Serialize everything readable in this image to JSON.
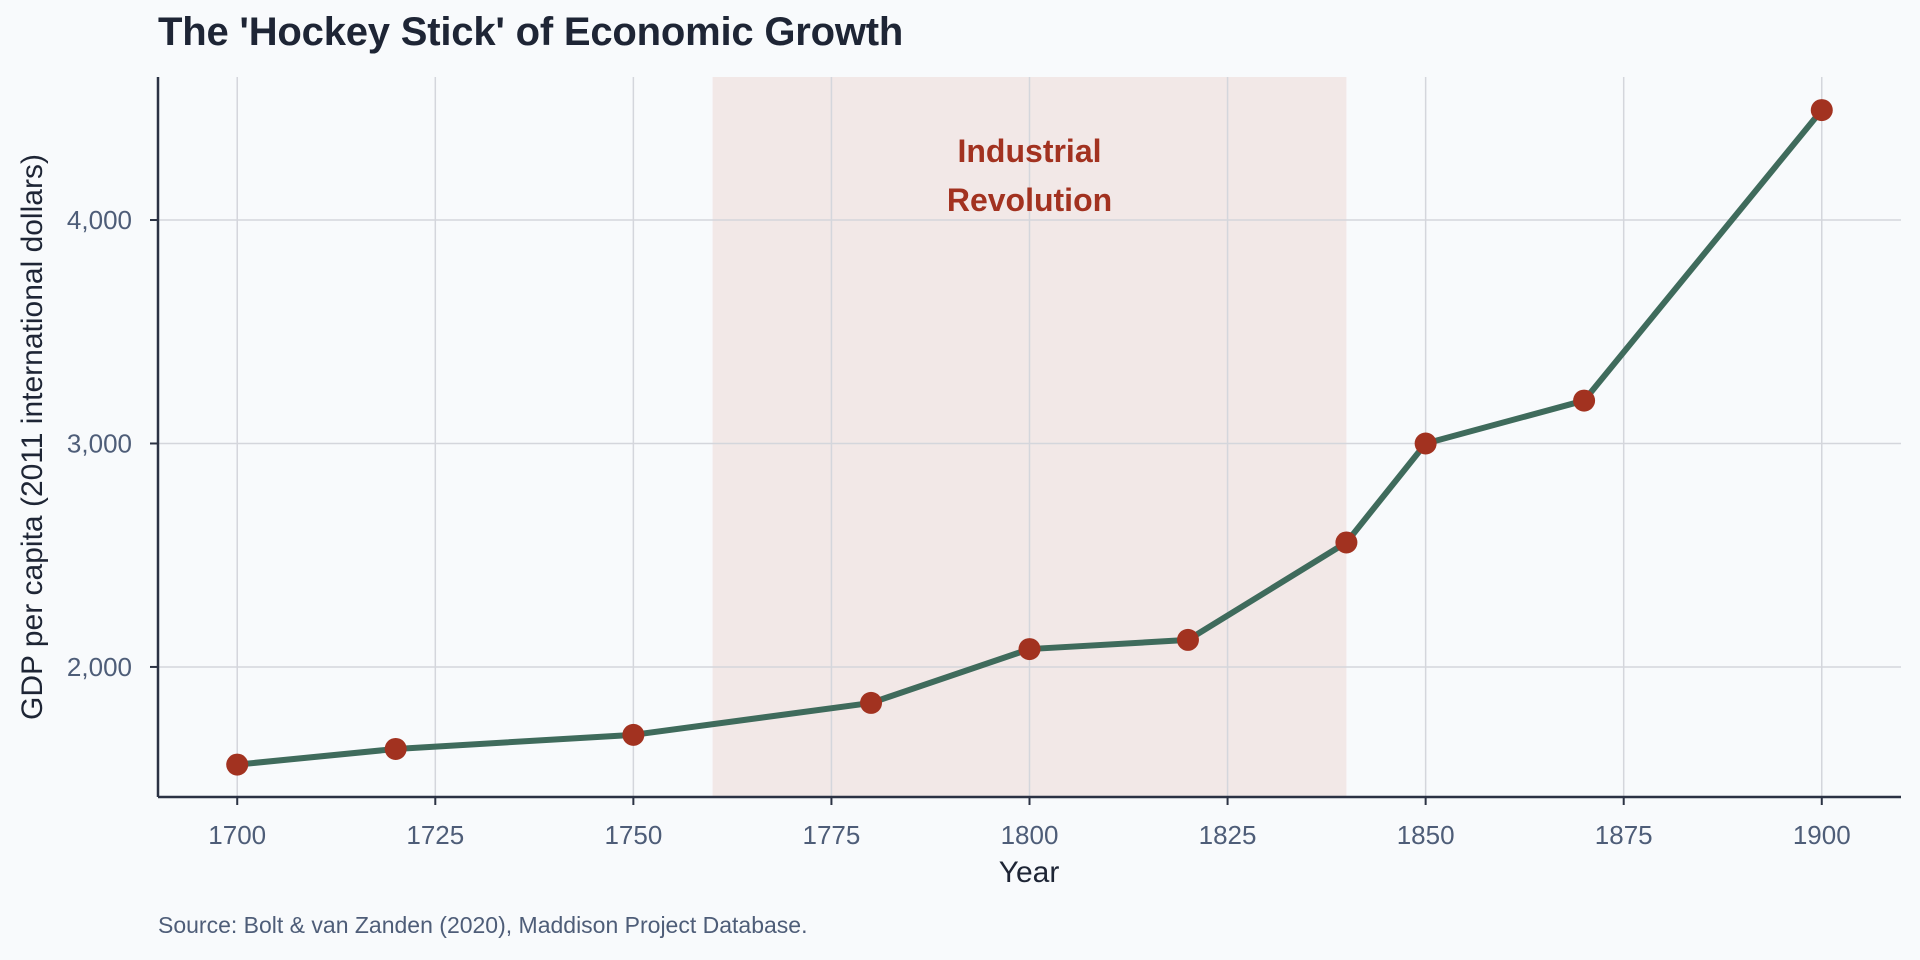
{
  "chart_data": {
    "type": "line",
    "title": "The 'Hockey Stick' of Economic Growth",
    "xlabel": "Year",
    "ylabel": "GDP per capita (2011 international dollars)",
    "source": "Source: Bolt & van Zanden (2020), Maddison Project Database.",
    "x": [
      1700,
      1720,
      1750,
      1780,
      1800,
      1820,
      1840,
      1850,
      1870,
      1900
    ],
    "series": [
      {
        "name": "GDP per capita",
        "values": [
          1563,
          1633,
          1696,
          1839,
          2080,
          2121,
          2557,
          3000,
          3192,
          4492
        ]
      }
    ],
    "xlim": [
      1690,
      1910
    ],
    "ylim": [
      1418,
      4640
    ],
    "xticks": [
      1700,
      1725,
      1750,
      1775,
      1800,
      1825,
      1850,
      1875,
      1900
    ],
    "xtick_labels": [
      "1700",
      "1725",
      "1750",
      "1775",
      "1800",
      "1825",
      "1850",
      "1875",
      "1900"
    ],
    "yticks": [
      2000,
      3000,
      4000
    ],
    "ytick_labels": [
      "2,000",
      "3,000",
      "4,000"
    ],
    "grid": true,
    "shaded_region": {
      "x_start": 1760,
      "x_end": 1840,
      "label_lines": [
        "Industrial",
        "Revolution"
      ]
    },
    "colors": {
      "line": "#3f6b5c",
      "marker": "#a23220",
      "shade": "#f2e8e7",
      "annotation": "#a23220",
      "grid": "#d4d6dc",
      "axis": "#2b3244"
    }
  }
}
